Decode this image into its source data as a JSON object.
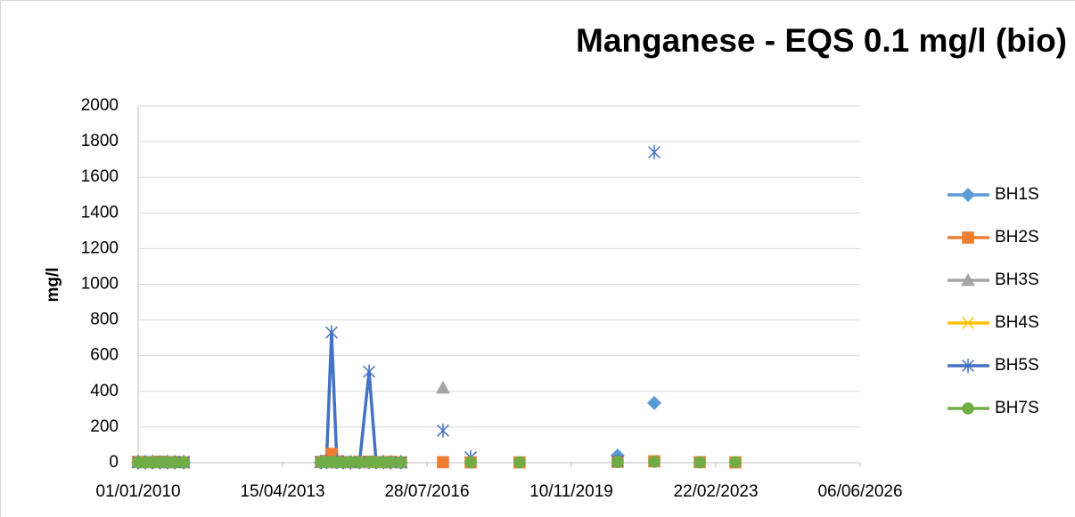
{
  "chart_data": {
    "type": "line",
    "title": "Manganese - EQS 0.1 mg/l (bio)",
    "y_label": "mg/l",
    "x": [
      "2010-01-01",
      "2010-03-01",
      "2010-05-01",
      "2010-07-01",
      "2010-09-01",
      "2010-11-01",
      "2011-01-15",
      "2012-06-01",
      "2014-02-28",
      "2014-04-15",
      "2014-05-27",
      "2014-07-10",
      "2014-09-01",
      "2014-11-01",
      "2015-01-15",
      "2015-04-04",
      "2015-06-01",
      "2015-08-01",
      "2015-10-01",
      "2015-12-25",
      "2016-06-01",
      "2016-12-08",
      "2017-04-01",
      "2017-07-26",
      "2018-02-01",
      "2018-09-05",
      "2019-10-01",
      "2020-11-28",
      "2021-04-15",
      "2021-09-29",
      "2022-04-01",
      "2022-10-12",
      "2023-02-15",
      "2023-08-04"
    ],
    "series": [
      {
        "name": "BH1S",
        "color": "#5b9bd5",
        "marker": "diamond",
        "values": [
          2,
          3,
          1,
          2,
          3,
          2,
          1,
          null,
          2,
          3,
          4,
          2,
          1,
          3,
          2,
          2,
          1,
          3,
          2,
          1,
          null,
          null,
          null,
          null,
          null,
          null,
          null,
          40,
          null,
          335,
          null,
          null,
          null,
          null
        ]
      },
      {
        "name": "BH2S",
        "color": "#ed7d31",
        "marker": "square",
        "values": [
          5,
          4,
          3,
          6,
          2,
          4,
          3,
          null,
          5,
          10,
          50,
          8,
          4,
          3,
          5,
          6,
          4,
          3,
          5,
          2,
          null,
          3,
          null,
          2,
          null,
          2,
          null,
          5,
          null,
          8,
          null,
          3,
          null,
          2
        ]
      },
      {
        "name": "BH3S",
        "color": "#a5a5a5",
        "marker": "triangle",
        "values": [
          1,
          1,
          2,
          1,
          1,
          2,
          1,
          null,
          1,
          2,
          1,
          1,
          2,
          1,
          1,
          1,
          2,
          1,
          1,
          1,
          null,
          420,
          null,
          null,
          null,
          null,
          null,
          null,
          null,
          null,
          null,
          null,
          null,
          null
        ]
      },
      {
        "name": "BH4S",
        "color": "#ffc000",
        "marker": "x",
        "values": [
          1,
          2,
          1,
          1,
          2,
          1,
          1,
          null,
          2,
          1,
          1,
          2,
          1,
          1,
          2,
          1,
          1,
          1,
          2,
          1,
          null,
          null,
          null,
          null,
          null,
          null,
          null,
          null,
          null,
          null,
          null,
          null,
          null,
          null
        ]
      },
      {
        "name": "BH5S",
        "color": "#4472c4",
        "marker": "star",
        "values": [
          3,
          2,
          4,
          2,
          3,
          2,
          3,
          null,
          4,
          5,
          730,
          6,
          3,
          2,
          4,
          510,
          5,
          3,
          2,
          3,
          null,
          180,
          null,
          30,
          null,
          null,
          null,
          10,
          null,
          1740,
          null,
          null,
          null,
          null
        ]
      },
      {
        "name": "BH7S",
        "color": "#70ad47",
        "marker": "circle",
        "values": [
          2,
          3,
          2,
          4,
          3,
          2,
          2,
          null,
          3,
          4,
          5,
          3,
          2,
          4,
          3,
          6,
          3,
          2,
          3,
          2,
          null,
          null,
          null,
          3,
          null,
          2,
          null,
          4,
          null,
          5,
          null,
          2,
          null,
          3
        ]
      }
    ],
    "xlim": [
      "2010-01-01",
      "2026-06-06"
    ],
    "xticks": [
      {
        "value": "2010-01-01",
        "label": "01/01/2010"
      },
      {
        "value": "2013-04-15",
        "label": "15/04/2013"
      },
      {
        "value": "2016-07-28",
        "label": "28/07/2016"
      },
      {
        "value": "2019-11-10",
        "label": "10/11/2019"
      },
      {
        "value": "2023-02-22",
        "label": "22/02/2023"
      },
      {
        "value": "2026-06-06",
        "label": "06/06/2026"
      }
    ],
    "ylim": [
      0,
      2000
    ],
    "yticks": [
      0,
      200,
      400,
      600,
      800,
      1000,
      1200,
      1400,
      1600,
      1800,
      2000
    ],
    "grid": true,
    "legend": "right"
  }
}
